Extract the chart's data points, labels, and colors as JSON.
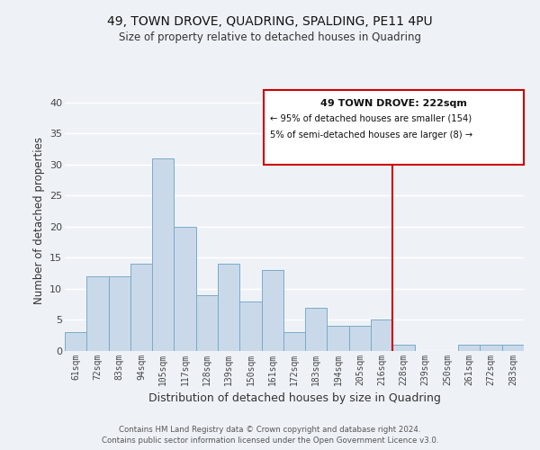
{
  "title": "49, TOWN DROVE, QUADRING, SPALDING, PE11 4PU",
  "subtitle": "Size of property relative to detached houses in Quadring",
  "xlabel": "Distribution of detached houses by size in Quadring",
  "ylabel": "Number of detached properties",
  "bar_labels": [
    "61sqm",
    "72sqm",
    "83sqm",
    "94sqm",
    "105sqm",
    "117sqm",
    "128sqm",
    "139sqm",
    "150sqm",
    "161sqm",
    "172sqm",
    "183sqm",
    "194sqm",
    "205sqm",
    "216sqm",
    "228sqm",
    "239sqm",
    "250sqm",
    "261sqm",
    "272sqm",
    "283sqm"
  ],
  "bar_values": [
    3,
    12,
    12,
    14,
    31,
    20,
    9,
    14,
    8,
    13,
    3,
    7,
    4,
    4,
    5,
    1,
    0,
    0,
    1,
    1,
    1
  ],
  "bar_color": "#c9d9e9",
  "bar_edge_color": "#7aaac8",
  "background_color": "#eef2f7",
  "grid_color": "#ffffff",
  "ylim": [
    0,
    42
  ],
  "yticks": [
    0,
    5,
    10,
    15,
    20,
    25,
    30,
    35,
    40
  ],
  "vline_color": "#cc0000",
  "annotation_title": "49 TOWN DROVE: 222sqm",
  "annotation_line1": "← 95% of detached houses are smaller (154)",
  "annotation_line2": "5% of semi-detached houses are larger (8) →",
  "annotation_box_color": "#cc0000",
  "footer_line1": "Contains HM Land Registry data © Crown copyright and database right 2024.",
  "footer_line2": "Contains public sector information licensed under the Open Government Licence v3.0."
}
